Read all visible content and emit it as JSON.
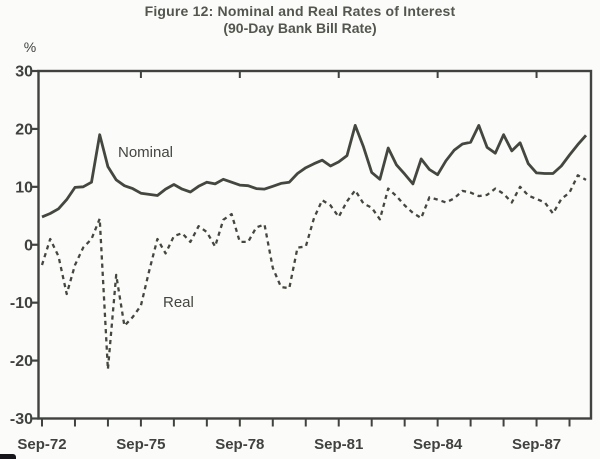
{
  "figure": {
    "title_line1": "Figure 12: Nominal and Real Rates of Interest",
    "title_line2": "(90-Day Bank Bill Rate)"
  },
  "chart_data": {
    "type": "line",
    "title": "Figure 12: Nominal and Real Rates of Interest",
    "subtitle": "(90-Day Bank Bill Rate)",
    "ylabel": "%",
    "ylim": [
      -30,
      30
    ],
    "y_ticks": [
      30,
      20,
      10,
      0,
      -10,
      -20,
      -30
    ],
    "x_major_tick_labels": [
      "Sep-72",
      "Sep-75",
      "Sep-78",
      "Sep-81",
      "Sep-84",
      "Sep-87"
    ],
    "x_minor_ticks": "yearly",
    "x_frequency": "quarterly",
    "grid": false,
    "legend_position": "inline-annotations",
    "x": [
      "Sep-72",
      "Dec-72",
      "Mar-73",
      "Jun-73",
      "Sep-73",
      "Dec-73",
      "Mar-74",
      "Jun-74",
      "Sep-74",
      "Dec-74",
      "Mar-75",
      "Jun-75",
      "Sep-75",
      "Dec-75",
      "Mar-76",
      "Jun-76",
      "Sep-76",
      "Dec-76",
      "Mar-77",
      "Jun-77",
      "Sep-77",
      "Dec-77",
      "Mar-78",
      "Jun-78",
      "Sep-78",
      "Dec-78",
      "Mar-79",
      "Jun-79",
      "Sep-79",
      "Dec-79",
      "Mar-80",
      "Jun-80",
      "Sep-80",
      "Dec-80",
      "Mar-81",
      "Jun-81",
      "Sep-81",
      "Dec-81",
      "Mar-82",
      "Jun-82",
      "Sep-82",
      "Dec-82",
      "Mar-83",
      "Jun-83",
      "Sep-83",
      "Dec-83",
      "Mar-84",
      "Jun-84",
      "Sep-84",
      "Dec-84",
      "Mar-85",
      "Jun-85",
      "Sep-85",
      "Dec-85",
      "Mar-86",
      "Jun-86",
      "Sep-86",
      "Dec-86",
      "Mar-87",
      "Jun-87",
      "Sep-87",
      "Dec-87",
      "Mar-88",
      "Jun-88",
      "Sep-88",
      "Dec-88",
      "Mar-89"
    ],
    "series": [
      {
        "name": "Nominal",
        "style": "solid",
        "values": [
          4.8,
          5.4,
          6.2,
          7.8,
          9.9,
          10.0,
          10.8,
          19.0,
          13.5,
          11.2,
          10.2,
          9.7,
          8.9,
          8.7,
          8.5,
          9.6,
          10.4,
          9.6,
          9.1,
          10.1,
          10.8,
          10.5,
          11.3,
          10.8,
          10.3,
          10.2,
          9.7,
          9.6,
          10.1,
          10.6,
          10.8,
          12.3,
          13.3,
          14.0,
          14.6,
          13.6,
          14.3,
          15.4,
          20.6,
          16.9,
          12.5,
          11.3,
          16.7,
          13.8,
          12.2,
          10.5,
          14.8,
          13.0,
          12.1,
          14.5,
          16.3,
          17.4,
          17.7,
          20.6,
          16.8,
          15.8,
          19.0,
          16.2,
          17.6,
          14.0,
          12.4,
          12.3,
          12.3,
          13.6,
          15.5,
          17.3,
          18.9
        ]
      },
      {
        "name": "Real",
        "style": "dashed",
        "values": [
          -3.5,
          1.0,
          -2.0,
          -8.5,
          -3.5,
          -0.5,
          1.0,
          4.5,
          -21.5,
          -5.2,
          -14.0,
          -12.5,
          -10.5,
          -4.5,
          1.0,
          -1.5,
          1.5,
          2.0,
          0.5,
          3.2,
          2.2,
          -0.3,
          4.3,
          5.3,
          0.5,
          0.5,
          3.0,
          3.5,
          -4.0,
          -7.3,
          -7.5,
          -0.5,
          -0.3,
          4.6,
          7.7,
          6.8,
          4.8,
          7.5,
          9.4,
          7.1,
          6.4,
          4.4,
          9.7,
          8.4,
          6.8,
          5.5,
          4.6,
          8.2,
          7.8,
          7.3,
          8.0,
          9.3,
          9.0,
          8.4,
          8.6,
          9.7,
          8.8,
          7.3,
          10.0,
          8.5,
          7.9,
          7.3,
          5.4,
          7.9,
          9.0,
          12.0,
          11.2
        ]
      }
    ],
    "annotations": [
      {
        "text": "Nominal",
        "attached_to": "Nominal"
      },
      {
        "text": "Real",
        "attached_to": "Real"
      }
    ],
    "colors": {
      "line": "#44473f",
      "axis": "#3f423e",
      "text": "#3f423e",
      "background": "#fbfbf9"
    }
  }
}
